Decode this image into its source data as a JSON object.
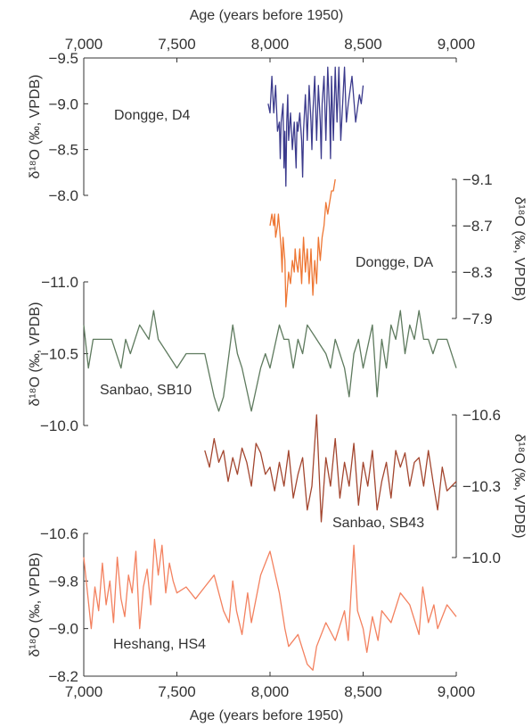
{
  "chart_data": {
    "type": "line",
    "title": "",
    "xlabel_top": "Age (years before 1950)",
    "xlabel_bottom": "Age (years before 1950)",
    "xlim": [
      7000,
      9000
    ],
    "x_ticks": [
      7000,
      7500,
      8000,
      8500,
      9000
    ],
    "x_tick_labels": [
      "7,000",
      "7,500",
      "8,000",
      "8,500",
      "9,000"
    ],
    "ylabel_left": "δ¹⁸O (‰, VPDB)",
    "ylabel_right": "δ¹⁸O (‰, VPDB)",
    "panels": [
      {
        "name": "Dongge, D4",
        "color": "#3b3a8c",
        "axis_side": "left",
        "ylim_top": -9.5,
        "ylim_bottom": -8.0,
        "ticks": [
          -9.5,
          -9.0,
          -8.5,
          -8.0
        ],
        "tick_labels": [
          "−9.5",
          "−9.0",
          "−8.5",
          "−8.0"
        ],
        "x": [
          7990,
          8000,
          8010,
          8020,
          8030,
          8040,
          8050,
          8055,
          8060,
          8070,
          8075,
          8080,
          8085,
          8090,
          8095,
          8100,
          8110,
          8120,
          8130,
          8140,
          8145,
          8150,
          8160,
          8170,
          8175,
          8180,
          8190,
          8200,
          8210,
          8220,
          8225,
          8230,
          8240,
          8250,
          8260,
          8270,
          8275,
          8280,
          8290,
          8300,
          8310,
          8320,
          8325,
          8330,
          8340,
          8350,
          8360,
          8370,
          8380,
          8390,
          8400,
          8410,
          8420,
          8440,
          8460,
          8480,
          8490,
          8500
        ],
        "y": [
          -9.0,
          -8.9,
          -9.3,
          -8.9,
          -9.2,
          -8.7,
          -8.8,
          -8.4,
          -8.8,
          -9.0,
          -8.3,
          -8.7,
          -8.1,
          -8.8,
          -9.1,
          -8.6,
          -8.9,
          -8.5,
          -8.8,
          -8.3,
          -8.8,
          -8.7,
          -8.9,
          -8.6,
          -8.2,
          -8.7,
          -9.1,
          -8.6,
          -9.2,
          -8.8,
          -8.5,
          -8.9,
          -9.3,
          -8.6,
          -9.2,
          -8.8,
          -8.4,
          -9.0,
          -9.3,
          -8.6,
          -9.4,
          -8.9,
          -8.4,
          -9.3,
          -8.6,
          -9.4,
          -8.8,
          -9.4,
          -8.6,
          -9.0,
          -9.4,
          -8.8,
          -9.0,
          -9.3,
          -8.8,
          -9.1,
          -9.0,
          -9.2
        ]
      },
      {
        "name": "Dongge, DA",
        "color": "#ee7633",
        "axis_side": "right",
        "ylim_top": -9.1,
        "ylim_bottom": -7.9,
        "ticks": [
          -9.1,
          -8.7,
          -8.3,
          -7.9
        ],
        "tick_labels": [
          "−9.1",
          "−8.7",
          "−8.3",
          "−7.9"
        ],
        "x": [
          8000,
          8010,
          8020,
          8025,
          8030,
          8040,
          8045,
          8050,
          8060,
          8065,
          8070,
          8080,
          8085,
          8090,
          8100,
          8110,
          8120,
          8130,
          8135,
          8140,
          8150,
          8160,
          8170,
          8180,
          8190,
          8200,
          8210,
          8220,
          8230,
          8240,
          8250,
          8260,
          8270,
          8280,
          8290,
          8300,
          8310,
          8320,
          8330,
          8340,
          8350
        ],
        "y": [
          -8.7,
          -8.8,
          -8.7,
          -8.8,
          -8.6,
          -8.7,
          -8.8,
          -8.7,
          -8.5,
          -8.3,
          -8.6,
          -8.4,
          -8.0,
          -8.1,
          -8.3,
          -8.2,
          -8.4,
          -8.3,
          -8.5,
          -8.4,
          -8.3,
          -8.5,
          -8.2,
          -8.6,
          -8.3,
          -8.5,
          -8.2,
          -8.5,
          -8.1,
          -8.4,
          -8.2,
          -8.6,
          -8.4,
          -8.6,
          -8.7,
          -8.9,
          -8.8,
          -8.9,
          -9.0,
          -9.0,
          -9.1
        ]
      },
      {
        "name": "Sanbao, SB10",
        "color": "#5e7a5e",
        "axis_side": "left",
        "ylim_top": -11.0,
        "ylim_bottom": -10.0,
        "ticks": [
          -11.0,
          -10.5,
          -10.0
        ],
        "tick_labels": [
          "−11.0",
          "−10.5",
          "−10.0"
        ],
        "x": [
          7000,
          7025,
          7050,
          7100,
          7150,
          7200,
          7225,
          7250,
          7300,
          7350,
          7375,
          7400,
          7450,
          7500,
          7550,
          7600,
          7650,
          7700,
          7725,
          7750,
          7800,
          7825,
          7850,
          7900,
          7950,
          7975,
          8000,
          8050,
          8075,
          8100,
          8125,
          8150,
          8175,
          8200,
          8250,
          8300,
          8325,
          8350,
          8400,
          8425,
          8450,
          8475,
          8500,
          8550,
          8575,
          8600,
          8625,
          8650,
          8675,
          8700,
          8725,
          8750,
          8775,
          8800,
          8825,
          8850,
          8875,
          8900,
          8950,
          9000
        ],
        "y": [
          -10.7,
          -10.4,
          -10.6,
          -10.6,
          -10.6,
          -10.4,
          -10.6,
          -10.5,
          -10.7,
          -10.6,
          -10.8,
          -10.6,
          -10.5,
          -10.4,
          -10.5,
          -10.5,
          -10.5,
          -10.2,
          -10.1,
          -10.2,
          -10.7,
          -10.5,
          -10.4,
          -10.1,
          -10.4,
          -10.5,
          -10.4,
          -10.7,
          -10.6,
          -10.6,
          -10.4,
          -10.6,
          -10.5,
          -10.7,
          -10.6,
          -10.5,
          -10.4,
          -10.6,
          -10.4,
          -10.2,
          -10.5,
          -10.6,
          -10.4,
          -10.7,
          -10.2,
          -10.6,
          -10.4,
          -10.7,
          -10.6,
          -10.8,
          -10.5,
          -10.7,
          -10.6,
          -10.8,
          -10.6,
          -10.6,
          -10.5,
          -10.6,
          -10.6,
          -10.4
        ]
      },
      {
        "name": "Sanbao, SB43",
        "color": "#a3462f",
        "axis_side": "right",
        "ylim_top": -10.6,
        "ylim_bottom": -10.0,
        "ticks": [
          -10.6,
          -10.3,
          -10.0
        ],
        "tick_labels": [
          "−10.6",
          "−10.3",
          "−10.0"
        ],
        "x": [
          7650,
          7675,
          7700,
          7725,
          7750,
          7775,
          7800,
          7825,
          7850,
          7875,
          7900,
          7925,
          7950,
          7975,
          8000,
          8025,
          8050,
          8075,
          8100,
          8125,
          8150,
          8175,
          8200,
          8225,
          8250,
          8275,
          8300,
          8325,
          8350,
          8375,
          8400,
          8425,
          8450,
          8475,
          8500,
          8525,
          8550,
          8575,
          8600,
          8625,
          8650,
          8675,
          8700,
          8725,
          8750,
          8775,
          8800,
          8825,
          8850,
          8875,
          8900,
          8925,
          8950,
          8975,
          9000
        ],
        "y": [
          -10.45,
          -10.38,
          -10.5,
          -10.4,
          -10.45,
          -10.32,
          -10.42,
          -10.35,
          -10.46,
          -10.4,
          -10.3,
          -10.48,
          -10.44,
          -10.35,
          -10.38,
          -10.28,
          -10.4,
          -10.3,
          -10.45,
          -10.25,
          -10.35,
          -10.42,
          -10.2,
          -10.3,
          -10.6,
          -10.15,
          -10.42,
          -10.3,
          -10.5,
          -10.25,
          -10.4,
          -10.3,
          -10.48,
          -10.22,
          -10.4,
          -10.3,
          -10.45,
          -10.2,
          -10.32,
          -10.4,
          -10.25,
          -10.45,
          -10.38,
          -10.44,
          -10.3,
          -10.4,
          -10.42,
          -10.3,
          -10.45,
          -10.32,
          -10.2,
          -10.38,
          -10.28,
          -10.3,
          -10.32
        ]
      },
      {
        "name": "Heshang, HS4",
        "color": "#f3815f",
        "axis_side": "left",
        "ylim_top": -10.6,
        "ylim_bottom": -8.2,
        "ticks": [
          -10.6,
          -9.8,
          -9.0,
          -8.2
        ],
        "tick_labels": [
          "−10.6",
          "−9.8",
          "−9.0",
          "−8.2"
        ],
        "x": [
          7000,
          7020,
          7040,
          7060,
          7080,
          7100,
          7120,
          7140,
          7160,
          7180,
          7200,
          7220,
          7240,
          7260,
          7280,
          7300,
          7320,
          7340,
          7360,
          7380,
          7400,
          7420,
          7440,
          7460,
          7480,
          7500,
          7550,
          7600,
          7650,
          7700,
          7750,
          7780,
          7800,
          7820,
          7850,
          7880,
          7900,
          7950,
          8000,
          8050,
          8080,
          8100,
          8150,
          8200,
          8230,
          8250,
          8300,
          8350,
          8400,
          8420,
          8450,
          8470,
          8500,
          8520,
          8550,
          8580,
          8600,
          8650,
          8700,
          8750,
          8800,
          8820,
          8850,
          8880,
          8900,
          8950,
          9000
        ],
        "y": [
          -10.2,
          -9.6,
          -9.0,
          -9.7,
          -9.3,
          -10.1,
          -9.4,
          -9.8,
          -9.1,
          -10.2,
          -9.5,
          -9.2,
          -9.9,
          -9.6,
          -10.3,
          -9.0,
          -9.7,
          -10.0,
          -9.4,
          -10.5,
          -9.9,
          -10.4,
          -9.6,
          -10.1,
          -9.8,
          -9.6,
          -9.7,
          -9.5,
          -9.7,
          -9.9,
          -9.3,
          -9.1,
          -9.8,
          -9.3,
          -8.9,
          -9.6,
          -9.1,
          -9.9,
          -10.3,
          -9.6,
          -9.0,
          -8.7,
          -8.9,
          -8.4,
          -8.3,
          -8.7,
          -9.1,
          -8.8,
          -9.3,
          -8.8,
          -10.4,
          -9.3,
          -9.0,
          -8.6,
          -9.2,
          -8.8,
          -9.3,
          -9.1,
          -9.6,
          -9.4,
          -8.9,
          -9.7,
          -9.1,
          -9.4,
          -9.0,
          -9.4,
          -9.2
        ]
      }
    ]
  }
}
